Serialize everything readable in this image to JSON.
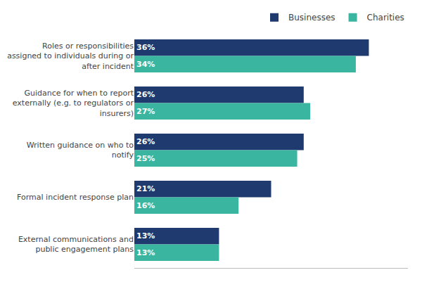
{
  "chart_data": {
    "type": "bar",
    "orientation": "horizontal",
    "categories": [
      "Roles or responsibilities\nassigned to individuals during or\nafter incident",
      "Guidance for when to report\nexternally (e.g. to regulators or\ninsurers)",
      "Written guidance on who to\nnotify",
      "Formal incident response plan",
      "External communications and\npublic engagement plans"
    ],
    "series": [
      {
        "name": "Businesses",
        "color": "#1e3a6e",
        "values": [
          36,
          26,
          26,
          21,
          13
        ],
        "value_labels": [
          "36%",
          "26%",
          "26%",
          "21%",
          "13%"
        ]
      },
      {
        "name": "Charities",
        "color": "#3ab5a0",
        "values": [
          34,
          27,
          25,
          16,
          13
        ],
        "value_labels": [
          "34%",
          "27%",
          "25%",
          "16%",
          "13%"
        ]
      }
    ],
    "xlim": [
      0,
      42
    ],
    "data_labels": true,
    "tick_labels": "y",
    "grid": false,
    "legend": "upper right"
  }
}
